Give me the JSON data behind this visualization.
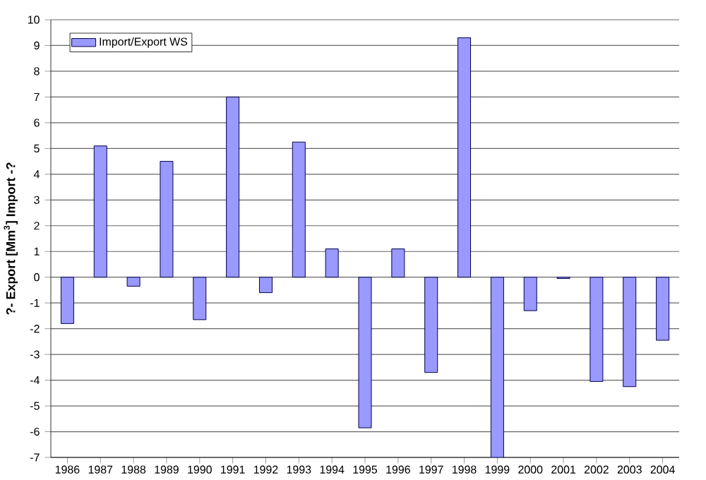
{
  "chart_data": {
    "type": "bar",
    "ylabel": "?- Export [Mm$^{3}$] Import -?",
    "categories": [
      "1986",
      "1987",
      "1988",
      "1989",
      "1990",
      "1991",
      "1992",
      "1993",
      "1994",
      "1995",
      "1996",
      "1997",
      "1998",
      "1999",
      "2000",
      "2001",
      "2002",
      "2003",
      "2004"
    ],
    "series": [
      {
        "name": "Import/Export WS",
        "color": "#9999ff",
        "values": [
          -1.8,
          5.1,
          -0.35,
          4.5,
          -1.65,
          7.0,
          -0.6,
          5.25,
          1.1,
          -5.85,
          1.1,
          -3.7,
          9.3,
          -7.0,
          -1.3,
          -0.05,
          -4.05,
          -4.25,
          -2.45
        ]
      }
    ],
    "ylim": [
      -7,
      10
    ],
    "yticks": [
      -7,
      -6,
      -5,
      -4,
      -3,
      -2,
      -1,
      0,
      1,
      2,
      3,
      4,
      5,
      6,
      7,
      8,
      9,
      10
    ],
    "grid": "y",
    "legend": "top left"
  }
}
